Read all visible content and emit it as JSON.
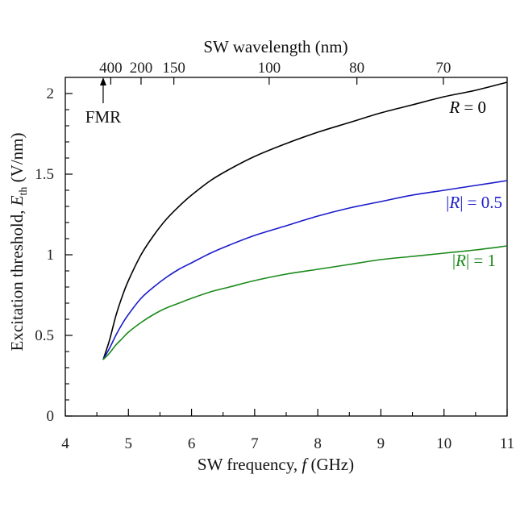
{
  "chart_data": {
    "type": "line",
    "xlabel_main": "SW frequency, ",
    "xlabel_var": "f",
    "xlabel_unit": " (GHz)",
    "ylabel_main": "Excitation threshold, ",
    "ylabel_var": "E",
    "ylabel_sub": "th",
    "ylabel_unit": " (V/nm)",
    "top_xlabel": "SW wavelength (nm)",
    "xlim": [
      4,
      11
    ],
    "ylim": [
      0,
      2.1
    ],
    "x_ticks": [
      4,
      5,
      6,
      7,
      8,
      9,
      10,
      11
    ],
    "x_tick_labels": [
      "4",
      "5",
      "6",
      "7",
      "8",
      "9",
      "10",
      "11"
    ],
    "y_ticks": [
      0,
      0.5,
      1,
      1.5,
      2
    ],
    "y_tick_labels": [
      "0",
      "0.5",
      "1",
      "1.5",
      "2"
    ],
    "top_ticks": [
      {
        "label": "400",
        "freq": 4.72
      },
      {
        "label": "200",
        "freq": 5.2
      },
      {
        "label": "150",
        "freq": 5.72
      },
      {
        "label": "100",
        "freq": 7.23
      },
      {
        "label": "80",
        "freq": 8.62
      },
      {
        "label": "70",
        "freq": 9.99
      }
    ],
    "annotation": {
      "text": "FMR",
      "x": 4.6
    },
    "grid": false,
    "series": [
      {
        "label_var": "R",
        "label_rest": " = 0",
        "color": "#000000",
        "x": [
          4.6,
          4.7,
          4.8,
          4.9,
          5.0,
          5.2,
          5.4,
          5.6,
          5.8,
          6.0,
          6.3,
          6.6,
          7.0,
          7.5,
          8.0,
          8.5,
          9.0,
          9.5,
          10.0,
          10.5,
          11.0
        ],
        "y": [
          0.35,
          0.47,
          0.62,
          0.74,
          0.84,
          1.0,
          1.12,
          1.22,
          1.3,
          1.37,
          1.46,
          1.53,
          1.61,
          1.69,
          1.76,
          1.82,
          1.88,
          1.93,
          1.98,
          2.02,
          2.07
        ]
      },
      {
        "label_pre": "|",
        "label_var": "R",
        "label_rest": "| = 0.5",
        "color": "#1a1acc",
        "x": [
          4.6,
          4.7,
          4.8,
          4.9,
          5.0,
          5.2,
          5.4,
          5.6,
          5.8,
          6.0,
          6.3,
          6.6,
          7.0,
          7.5,
          8.0,
          8.5,
          9.0,
          9.5,
          10.0,
          10.5,
          11.0
        ],
        "y": [
          0.35,
          0.42,
          0.5,
          0.57,
          0.63,
          0.73,
          0.8,
          0.86,
          0.91,
          0.95,
          1.01,
          1.06,
          1.12,
          1.18,
          1.24,
          1.29,
          1.33,
          1.37,
          1.4,
          1.43,
          1.46
        ]
      },
      {
        "label_pre": "|",
        "label_var": "R",
        "label_rest": "| = 1",
        "color": "#1a8a1a",
        "x": [
          4.6,
          4.7,
          4.8,
          4.9,
          5.0,
          5.2,
          5.4,
          5.6,
          5.8,
          6.0,
          6.3,
          6.6,
          7.0,
          7.5,
          8.0,
          8.5,
          9.0,
          9.5,
          10.0,
          10.5,
          11.0
        ],
        "y": [
          0.35,
          0.39,
          0.44,
          0.48,
          0.52,
          0.58,
          0.63,
          0.67,
          0.7,
          0.73,
          0.77,
          0.8,
          0.84,
          0.88,
          0.91,
          0.94,
          0.97,
          0.99,
          1.01,
          1.03,
          1.055
        ]
      }
    ]
  }
}
